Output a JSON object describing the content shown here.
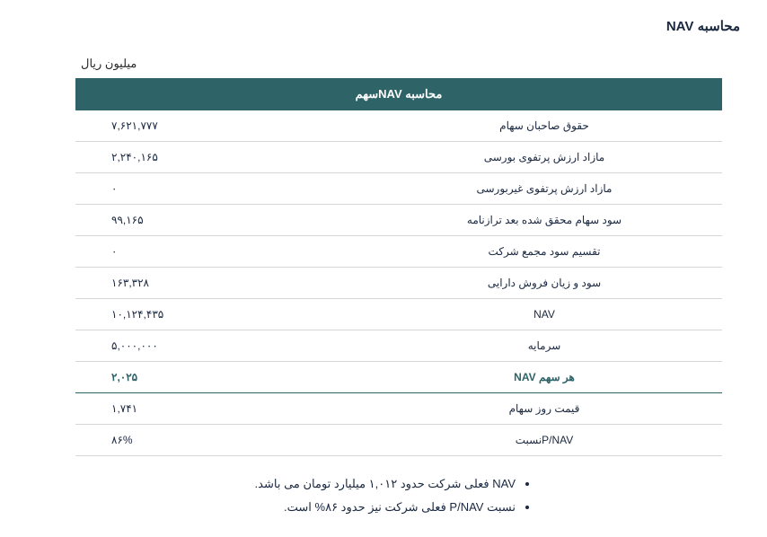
{
  "title": "محاسبه NAV",
  "unit": "میلیون ریال",
  "table": {
    "header": "محاسبه NAVسهم",
    "rows": [
      {
        "label": "حقوق صاحبان سهام",
        "value": "۷,۶۲۱,۷۷۷",
        "highlight": false
      },
      {
        "label": "مازاد ارزش پرتفوی بورسی",
        "value": "۲,۲۴۰,۱۶۵",
        "highlight": false
      },
      {
        "label": "مازاد ارزش پرتفوی غیربورسی",
        "value": "۰",
        "highlight": false
      },
      {
        "label": "سود سهام محقق شده بعد ترازنامه",
        "value": "۹۹,۱۶۵",
        "highlight": false
      },
      {
        "label": "تقسیم سود مجمع شرکت",
        "value": "۰",
        "highlight": false
      },
      {
        "label": "سود و زیان فروش دارایی",
        "value": "۱۶۳,۳۲۸",
        "highlight": false
      },
      {
        "label": "NAV",
        "value": "۱۰,۱۲۴,۴۳۵",
        "highlight": false
      },
      {
        "label": "سرمایه",
        "value": "۵,۰۰۰,۰۰۰",
        "highlight": false
      },
      {
        "label": "هر سهم NAV",
        "value": "۲,۰۲۵",
        "highlight": true
      },
      {
        "label": "قیمت روز سهام",
        "value": "۱,۷۴۱",
        "highlight": false
      },
      {
        "label": "P/NAVنسبت",
        "value": "۸۶%",
        "highlight": false
      }
    ]
  },
  "bullets": [
    "NAV فعلی شرکت حدود ۱,۰۱۲ میلیارد تومان می باشد.",
    "نسبت P/NAV فعلی شرکت نیز حدود ۸۶% است."
  ],
  "colors": {
    "header_bg": "#2e6368",
    "header_fg": "#ffffff",
    "text": "#1a2840",
    "border": "#d6d6d6",
    "highlight": "#2e6368"
  }
}
